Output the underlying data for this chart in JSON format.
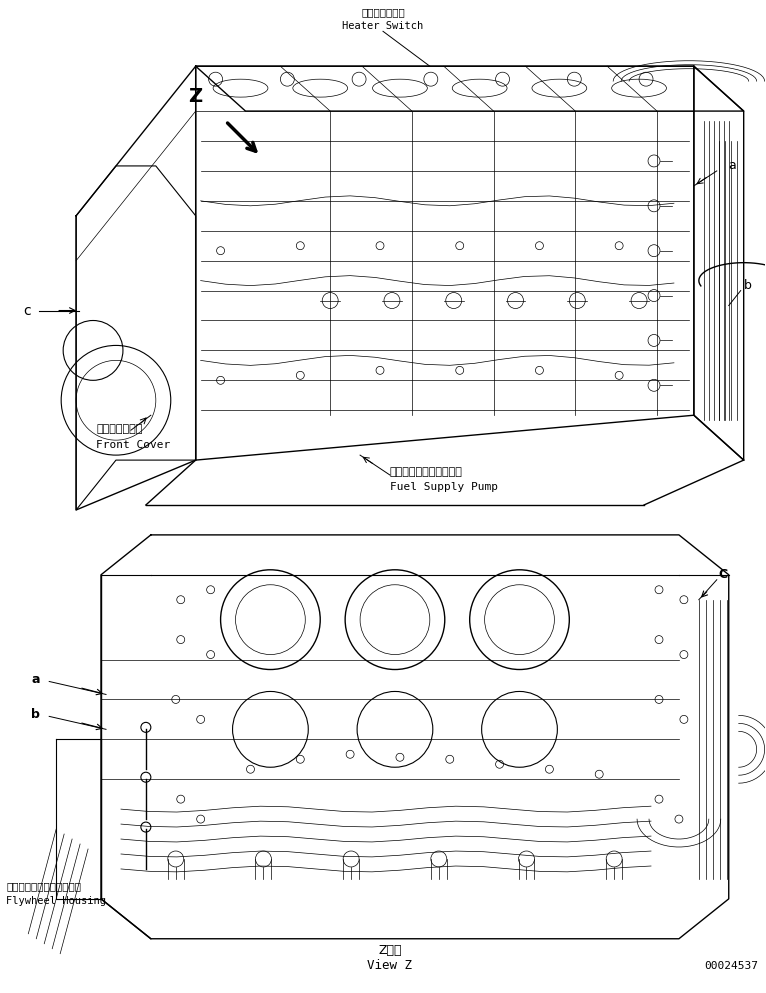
{
  "background_color": "#ffffff",
  "line_color": "#000000",
  "figure_width": 7.66,
  "figure_height": 9.93,
  "dpi": 100,
  "labels": {
    "heater_switch_jp": "ヒータスイッチ",
    "heater_switch_en": "Heater Switch",
    "front_cover_jp": "フロントカバー",
    "front_cover_en": "Front Cover",
    "fuel_supply_pump_jp": "フュエルサプライポンプ",
    "fuel_supply_pump_en": "Fuel Supply Pump",
    "flywheel_housing_jp": "フライホイールハウジング",
    "flywheel_housing_en": "Flywheel Housing",
    "view_z_jp": "Z　視",
    "view_z_en": "View Z",
    "part_number": "00024537",
    "z_label": "Z",
    "arrow_a_top": "a",
    "arrow_b_top": "b",
    "arrow_c_top": "c",
    "arrow_a_bot": "a",
    "arrow_b_bot": "b",
    "arrow_c_bot": "C"
  }
}
